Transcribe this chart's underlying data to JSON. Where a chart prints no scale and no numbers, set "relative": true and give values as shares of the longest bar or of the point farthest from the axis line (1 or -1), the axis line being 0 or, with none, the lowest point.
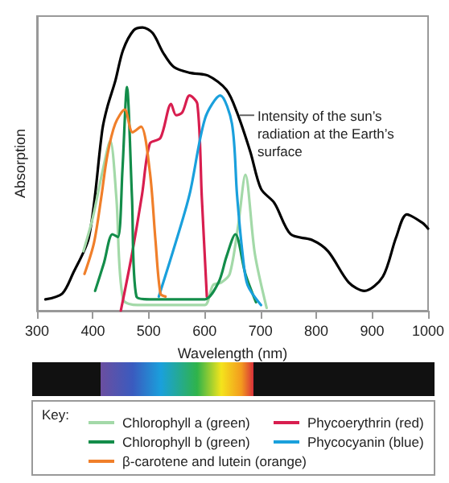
{
  "chart_data": {
    "type": "line",
    "relative": true,
    "xlabel": "Wavelength (nm)",
    "ylabel": "Absorption",
    "legend_title": "Key:",
    "legend": "bottom",
    "marker": "none",
    "xlim": [
      300,
      1000
    ],
    "xticks": [
      300,
      400,
      500,
      600,
      700,
      800,
      900,
      1000
    ],
    "annotations": [
      {
        "text": "Intensity of the sun’s radiation at the Earth’s surface",
        "x": 660,
        "y": 0.69
      }
    ],
    "series": [
      {
        "color": "#000000",
        "x": [
          315,
          345,
          364,
          393,
          417,
          426,
          440,
          454,
          473,
          489,
          507,
          526,
          545,
          573,
          606,
          639,
          658,
          682,
          701,
          725,
          754,
          792,
          821,
          858,
          886,
          919,
          943,
          962,
          990,
          1000
        ],
        "values": [
          0.04,
          0.06,
          0.13,
          0.26,
          0.64,
          0.72,
          0.81,
          0.92,
          0.99,
          1.0,
          0.98,
          0.91,
          0.86,
          0.84,
          0.83,
          0.78,
          0.7,
          0.56,
          0.43,
          0.38,
          0.27,
          0.25,
          0.21,
          0.1,
          0.07,
          0.12,
          0.26,
          0.34,
          0.31,
          0.29
        ]
      },
      {
        "name": "Chlorophyll a (green)",
        "color": "#a3d9a8",
        "x": [
          383,
          400,
          417,
          431,
          442,
          454,
          480,
          520,
          560,
          600,
          615,
          630,
          645,
          660,
          673,
          690,
          711
        ],
        "values": [
          0.21,
          0.33,
          0.49,
          0.6,
          0.4,
          0.04,
          0.02,
          0.02,
          0.02,
          0.02,
          0.09,
          0.1,
          0.13,
          0.3,
          0.48,
          0.2,
          0.01
        ]
      },
      {
        "name": "Phycoerythrin (red)",
        "color": "#d81e4f",
        "x": [
          450,
          470,
          488,
          502,
          521,
          540,
          549,
          560,
          573,
          587,
          595,
          604
        ],
        "values": [
          0.0,
          0.2,
          0.41,
          0.59,
          0.61,
          0.73,
          0.69,
          0.7,
          0.76,
          0.73,
          0.4,
          0.05
        ]
      },
      {
        "name": "Chlorophyll b (green)",
        "color": "#138d4a",
        "x": [
          404,
          420,
          435,
          445,
          453,
          461,
          470,
          478,
          502,
          550,
          600,
          625,
          639,
          655,
          673,
          692
        ],
        "values": [
          0.07,
          0.17,
          0.27,
          0.26,
          0.5,
          0.79,
          0.4,
          0.05,
          0.04,
          0.04,
          0.04,
          0.1,
          0.19,
          0.27,
          0.13,
          0.03
        ]
      },
      {
        "name": "Phycocyanin (blue)",
        "color": "#1aa0dc",
        "x": [
          518,
          545,
          573,
          601,
          628,
          649,
          658,
          668,
          677,
          701
        ],
        "values": [
          0.05,
          0.22,
          0.41,
          0.68,
          0.76,
          0.66,
          0.41,
          0.2,
          0.09,
          0.02
        ]
      },
      {
        "name": "β-carotene and lutein (orange)",
        "color": "#f07f2a",
        "x": [
          385,
          402,
          415,
          426,
          440,
          457,
          471,
          486,
          502,
          512,
          521,
          530
        ],
        "values": [
          0.13,
          0.24,
          0.4,
          0.55,
          0.66,
          0.71,
          0.63,
          0.65,
          0.49,
          0.25,
          0.06,
          0.05
        ]
      }
    ]
  }
}
